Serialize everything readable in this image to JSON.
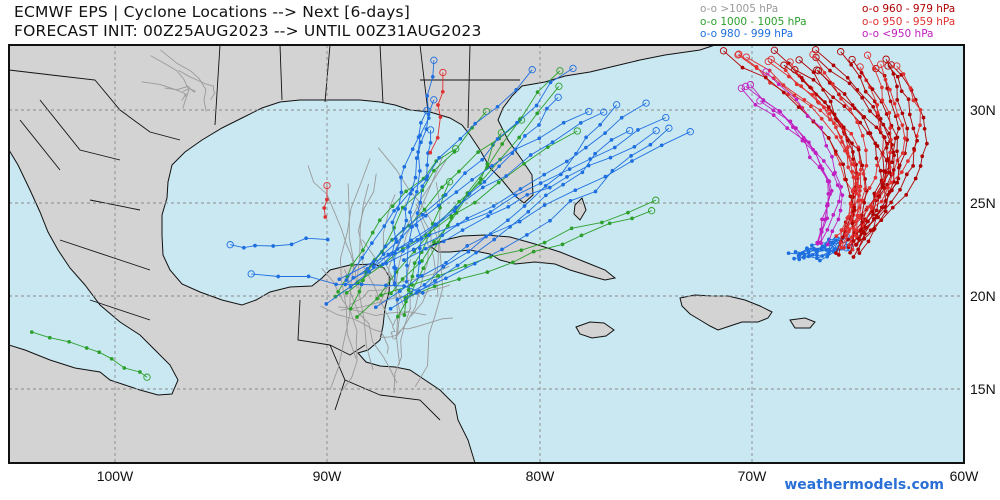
{
  "header": {
    "title_line1": "ECMWF EPS | Cyclone Locations --> Next [6-days]",
    "title_line2": "FORECAST INIT: 00Z25AUG2023 --> UNTIL 00Z31AUG2023"
  },
  "legend": [
    {
      "label": "o-o >1005 hPa",
      "color": "#9a9a9a"
    },
    {
      "label": "o-o 1000 - 1005 hPa",
      "color": "#2ca02c"
    },
    {
      "label": "o-o 980 - 999 hPa",
      "color": "#1f6fe0"
    },
    {
      "label": "o-o 960 - 979 hPa",
      "color": "#b00000"
    },
    {
      "label": "o-o 950 - 959 hPa",
      "color": "#e03030"
    },
    {
      "label": "o-o <950 hPa",
      "color": "#c020c0"
    }
  ],
  "axes": {
    "lon_labels": [
      "100W",
      "90W",
      "80W",
      "70W",
      "60W"
    ],
    "lat_labels": [
      "30N",
      "25N",
      "20N",
      "15N"
    ]
  },
  "map": {
    "ocean_color": "#c9e8f2",
    "land_color": "#d3d3d3"
  },
  "brand": "weathermodels.com"
}
